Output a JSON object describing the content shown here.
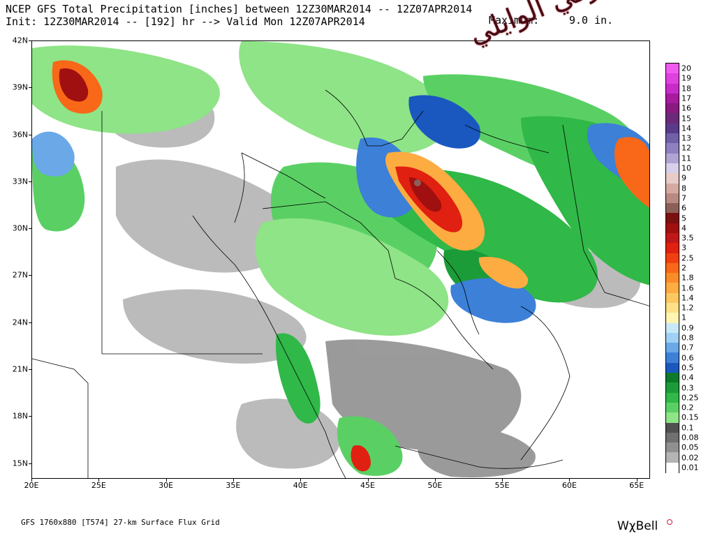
{
  "header": {
    "title_line1": "NCEP GFS Total Precipitation [inches] between 12Z30MAR2014 -- 12Z07APR2014",
    "title_line2": "Init: 12Z30MAR2014 -- [192] hr --> Valid Mon 12Z07APR2014",
    "maximum_label": "Maximum:",
    "maximum_value": "9.0 in."
  },
  "watermark_signature": "تركي الوايلي",
  "map": {
    "lat_labels": [
      "42N",
      "39N",
      "36N",
      "33N",
      "30N",
      "27N",
      "24N",
      "21N",
      "18N",
      "15N"
    ],
    "lon_labels": [
      "20E",
      "25E",
      "30E",
      "35E",
      "40E",
      "45E",
      "50E",
      "55E",
      "60E",
      "65E"
    ],
    "lat_range": [
      14,
      42
    ],
    "lon_range": [
      20,
      66
    ]
  },
  "legend": {
    "items": [
      {
        "label": "20",
        "color": "#f05af0"
      },
      {
        "label": "19",
        "color": "#e040e0"
      },
      {
        "label": "18",
        "color": "#c82cc8"
      },
      {
        "label": "17",
        "color": "#a81a9e"
      },
      {
        "label": "16",
        "color": "#881a80"
      },
      {
        "label": "15",
        "color": "#6a2a78"
      },
      {
        "label": "14",
        "color": "#5a3a8a"
      },
      {
        "label": "13",
        "color": "#7060a8"
      },
      {
        "label": "12",
        "color": "#9080c0"
      },
      {
        "label": "11",
        "color": "#b0a4d4"
      },
      {
        "label": "10",
        "color": "#d8d0ea"
      },
      {
        "label": "9",
        "color": "#e8ccc8"
      },
      {
        "label": "8",
        "color": "#d4aaa2"
      },
      {
        "label": "7",
        "color": "#b88a82"
      },
      {
        "label": "6",
        "color": "#8c6058"
      },
      {
        "label": "5",
        "color": "#7a1010"
      },
      {
        "label": "4",
        "color": "#a01010"
      },
      {
        "label": "3.5",
        "color": "#c01818"
      },
      {
        "label": "3",
        "color": "#e02010"
      },
      {
        "label": "2.5",
        "color": "#f04010"
      },
      {
        "label": "2",
        "color": "#f86818"
      },
      {
        "label": "1.8",
        "color": "#fa8c28"
      },
      {
        "label": "1.6",
        "color": "#fcac40"
      },
      {
        "label": "1.4",
        "color": "#fdc860"
      },
      {
        "label": "1.2",
        "color": "#fee088"
      },
      {
        "label": "1",
        "color": "#fff4b0"
      },
      {
        "label": "0.9",
        "color": "#c8e8f8"
      },
      {
        "label": "0.8",
        "color": "#a0d0f4"
      },
      {
        "label": "0.7",
        "color": "#6aa8e8"
      },
      {
        "label": "0.6",
        "color": "#3c80d8"
      },
      {
        "label": "0.5",
        "color": "#1a58c0"
      },
      {
        "label": "0.4",
        "color": "#0c7a28"
      },
      {
        "label": "0.3",
        "color": "#1c9c38"
      },
      {
        "label": "0.25",
        "color": "#30b848"
      },
      {
        "label": "0.2",
        "color": "#5ad064"
      },
      {
        "label": "0.15",
        "color": "#8ee486"
      },
      {
        "label": "0.1",
        "color": "#505050"
      },
      {
        "label": "0.08",
        "color": "#707070"
      },
      {
        "label": "0.05",
        "color": "#909090"
      },
      {
        "label": "0.02",
        "color": "#b4b4b4"
      },
      {
        "label": "0.01",
        "color": "#ffffff"
      }
    ]
  },
  "footer": {
    "model_info": "GFS 1760x880 [T574] 27-km Surface Flux Grid",
    "brand": "WχBell"
  }
}
